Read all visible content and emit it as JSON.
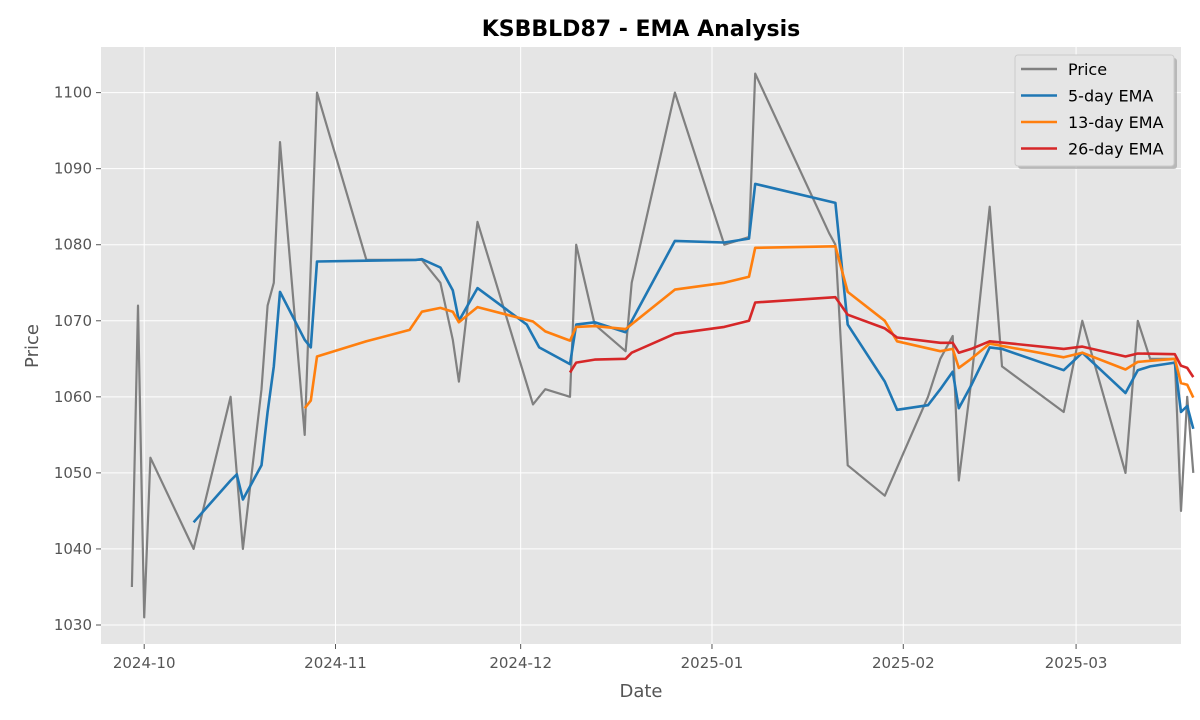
{
  "chart_data": {
    "type": "line",
    "title": "KSBBLD87 - EMA Analysis",
    "xlabel": "Date",
    "ylabel": "Price",
    "x_axis_type": "date",
    "xlim": [
      "2024-09-24",
      "2025-03-18"
    ],
    "ylim": [
      1027.5,
      1106
    ],
    "x_ticks": [
      {
        "date": "2024-10-01",
        "label": "2024-10"
      },
      {
        "date": "2024-11-01",
        "label": "2024-11"
      },
      {
        "date": "2024-12-01",
        "label": "2024-12"
      },
      {
        "date": "2025-01-01",
        "label": "2025-01"
      },
      {
        "date": "2025-02-01",
        "label": "2025-02"
      },
      {
        "date": "2025-03-01",
        "label": "2025-03"
      }
    ],
    "y_ticks": [
      1030,
      1040,
      1050,
      1060,
      1070,
      1080,
      1090,
      1100
    ],
    "grid": true,
    "legend_position": "top-right",
    "colors": {
      "background": "#e5e5e5",
      "grid": "#ffffff"
    },
    "series": [
      {
        "name": "Price",
        "color": "#808080",
        "points": [
          [
            "2024-09-29",
            1035
          ],
          [
            "2024-09-30",
            1072
          ],
          [
            "2024-10-01",
            1031
          ],
          [
            "2024-10-02",
            1052
          ],
          [
            "2024-10-09",
            1040
          ],
          [
            "2024-10-15",
            1060
          ],
          [
            "2024-10-17",
            1040
          ],
          [
            "2024-10-20",
            1061
          ],
          [
            "2024-10-21",
            1072
          ],
          [
            "2024-10-22",
            1075
          ],
          [
            "2024-10-23",
            1093.5
          ],
          [
            "2024-10-27",
            1055
          ],
          [
            "2024-10-29",
            1100
          ],
          [
            "2024-11-06",
            1078
          ],
          [
            "2024-11-15",
            1078
          ],
          [
            "2024-11-18",
            1075
          ],
          [
            "2024-11-20",
            1067.5
          ],
          [
            "2024-11-21",
            1062
          ],
          [
            "2024-11-24",
            1083
          ],
          [
            "2024-12-03",
            1059
          ],
          [
            "2024-12-05",
            1061
          ],
          [
            "2024-12-09",
            1060
          ],
          [
            "2024-12-10",
            1080
          ],
          [
            "2024-12-13",
            1069.5
          ],
          [
            "2024-12-18",
            1066
          ],
          [
            "2024-12-19",
            1075
          ],
          [
            "2024-12-26",
            1100
          ],
          [
            "2025-01-03",
            1080
          ],
          [
            "2025-01-07",
            1081
          ],
          [
            "2025-01-08",
            1102.5
          ],
          [
            "2025-01-20",
            1081.5
          ],
          [
            "2025-01-21",
            1080
          ],
          [
            "2025-01-23",
            1051
          ],
          [
            "2025-01-29",
            1047
          ],
          [
            "2025-02-05",
            1060
          ],
          [
            "2025-02-07",
            1065
          ],
          [
            "2025-02-09",
            1068
          ],
          [
            "2025-02-10",
            1049
          ],
          [
            "2025-02-12",
            1062
          ],
          [
            "2025-02-15",
            1085
          ],
          [
            "2025-02-17",
            1064
          ],
          [
            "2025-02-27",
            1058
          ],
          [
            "2025-03-02",
            1070
          ],
          [
            "2025-03-09",
            1050
          ],
          [
            "2025-03-11",
            1070
          ],
          [
            "2025-03-13",
            1065
          ],
          [
            "2025-03-17",
            1065
          ],
          [
            "2025-03-18",
            1045
          ],
          [
            "2025-03-19",
            1060
          ],
          [
            "2025-03-20",
            1050
          ]
        ]
      },
      {
        "name": "5-day EMA",
        "color": "#1f77b4",
        "points": [
          [
            "2024-10-09",
            1043.5
          ],
          [
            "2024-10-15",
            1049
          ],
          [
            "2024-10-16",
            1049.8
          ],
          [
            "2024-10-17",
            1046.5
          ],
          [
            "2024-10-20",
            1051
          ],
          [
            "2024-10-21",
            1058
          ],
          [
            "2024-10-22",
            1064
          ],
          [
            "2024-10-23",
            1073.8
          ],
          [
            "2024-10-27",
            1067.5
          ],
          [
            "2024-10-28",
            1066.5
          ],
          [
            "2024-10-29",
            1077.8
          ],
          [
            "2024-11-06",
            1077.9
          ],
          [
            "2024-11-14",
            1078
          ],
          [
            "2024-11-15",
            1078.1
          ],
          [
            "2024-11-18",
            1077
          ],
          [
            "2024-11-20",
            1074
          ],
          [
            "2024-11-21",
            1070
          ],
          [
            "2024-11-24",
            1074.3
          ],
          [
            "2024-12-02",
            1069.5
          ],
          [
            "2024-12-04",
            1066.5
          ],
          [
            "2024-12-09",
            1064.3
          ],
          [
            "2024-12-10",
            1069.5
          ],
          [
            "2024-12-13",
            1069.8
          ],
          [
            "2024-12-18",
            1068.5
          ],
          [
            "2024-12-26",
            1080.5
          ],
          [
            "2025-01-03",
            1080.3
          ],
          [
            "2025-01-07",
            1080.8
          ],
          [
            "2025-01-08",
            1088
          ],
          [
            "2025-01-21",
            1085.5
          ],
          [
            "2025-01-23",
            1069.5
          ],
          [
            "2025-01-29",
            1062
          ],
          [
            "2025-01-31",
            1058.3
          ],
          [
            "2025-02-05",
            1058.9
          ],
          [
            "2025-02-07",
            1061
          ],
          [
            "2025-02-09",
            1063.3
          ],
          [
            "2025-02-10",
            1058.5
          ],
          [
            "2025-02-12",
            1061.5
          ],
          [
            "2025-02-15",
            1066.5
          ],
          [
            "2025-02-17",
            1066.3
          ],
          [
            "2025-02-27",
            1063.5
          ],
          [
            "2025-03-02",
            1065.8
          ],
          [
            "2025-03-09",
            1060.5
          ],
          [
            "2025-03-11",
            1063.5
          ],
          [
            "2025-03-13",
            1064
          ],
          [
            "2025-03-17",
            1064.5
          ],
          [
            "2025-03-18",
            1058
          ],
          [
            "2025-03-19",
            1058.8
          ],
          [
            "2025-03-20",
            1055.8
          ]
        ]
      },
      {
        "name": "13-day EMA",
        "color": "#ff7f0e",
        "points": [
          [
            "2024-10-27",
            1058.5
          ],
          [
            "2024-10-28",
            1059.5
          ],
          [
            "2024-10-29",
            1065.3
          ],
          [
            "2024-11-06",
            1067.3
          ],
          [
            "2024-11-13",
            1068.8
          ],
          [
            "2024-11-15",
            1071.2
          ],
          [
            "2024-11-18",
            1071.7
          ],
          [
            "2024-11-20",
            1071.2
          ],
          [
            "2024-11-21",
            1069.8
          ],
          [
            "2024-11-24",
            1071.8
          ],
          [
            "2024-12-03",
            1069.9
          ],
          [
            "2024-12-05",
            1068.6
          ],
          [
            "2024-12-09",
            1067.4
          ],
          [
            "2024-12-10",
            1069.2
          ],
          [
            "2024-12-13",
            1069.3
          ],
          [
            "2024-12-18",
            1068.9
          ],
          [
            "2024-12-26",
            1074.1
          ],
          [
            "2025-01-03",
            1075
          ],
          [
            "2025-01-07",
            1075.8
          ],
          [
            "2025-01-08",
            1079.6
          ],
          [
            "2025-01-21",
            1079.8
          ],
          [
            "2025-01-23",
            1073.8
          ],
          [
            "2025-01-29",
            1070
          ],
          [
            "2025-01-31",
            1067.3
          ],
          [
            "2025-02-07",
            1066
          ],
          [
            "2025-02-09",
            1066.3
          ],
          [
            "2025-02-10",
            1063.8
          ],
          [
            "2025-02-12",
            1065
          ],
          [
            "2025-02-15",
            1067
          ],
          [
            "2025-02-27",
            1065.2
          ],
          [
            "2025-03-02",
            1065.8
          ],
          [
            "2025-03-09",
            1063.6
          ],
          [
            "2025-03-11",
            1064.6
          ],
          [
            "2025-03-17",
            1065
          ],
          [
            "2025-03-18",
            1061.8
          ],
          [
            "2025-03-19",
            1061.6
          ],
          [
            "2025-03-20",
            1059.9
          ]
        ]
      },
      {
        "name": "26-day EMA",
        "color": "#d62728",
        "points": [
          [
            "2024-12-09",
            1063.2
          ],
          [
            "2024-12-10",
            1064.5
          ],
          [
            "2024-12-13",
            1064.9
          ],
          [
            "2024-12-18",
            1065
          ],
          [
            "2024-12-19",
            1065.8
          ],
          [
            "2024-12-26",
            1068.3
          ],
          [
            "2025-01-03",
            1069.2
          ],
          [
            "2025-01-07",
            1070
          ],
          [
            "2025-01-08",
            1072.4
          ],
          [
            "2025-01-21",
            1073.1
          ],
          [
            "2025-01-23",
            1070.8
          ],
          [
            "2025-01-29",
            1069
          ],
          [
            "2025-01-31",
            1067.8
          ],
          [
            "2025-02-07",
            1067.1
          ],
          [
            "2025-02-09",
            1067.1
          ],
          [
            "2025-02-10",
            1065.8
          ],
          [
            "2025-02-12",
            1066.3
          ],
          [
            "2025-02-15",
            1067.3
          ],
          [
            "2025-02-27",
            1066.3
          ],
          [
            "2025-03-02",
            1066.6
          ],
          [
            "2025-03-09",
            1065.3
          ],
          [
            "2025-03-11",
            1065.7
          ],
          [
            "2025-03-17",
            1065.6
          ],
          [
            "2025-03-18",
            1064.1
          ],
          [
            "2025-03-19",
            1063.8
          ],
          [
            "2025-03-20",
            1062.6
          ]
        ]
      }
    ]
  }
}
